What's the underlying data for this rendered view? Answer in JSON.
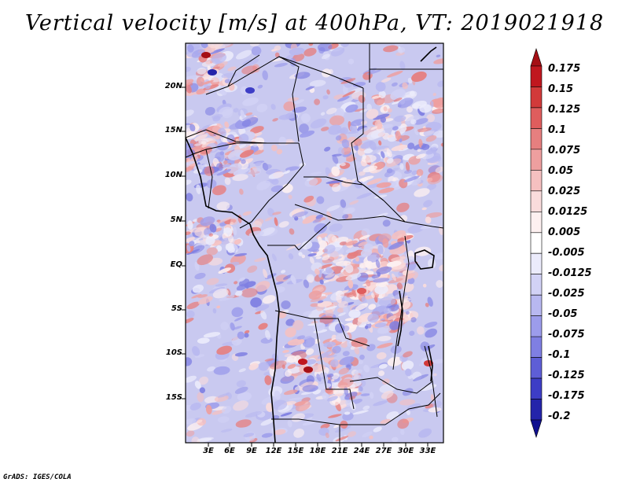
{
  "title": "Vertical velocity [m/s] at 400hPa, VT: 2019021918",
  "lat_labels": [
    "20N",
    "15N",
    "10N",
    "5N",
    "EQ",
    "5S",
    "10S",
    "15S"
  ],
  "lon_labels": [
    "3E",
    "6E",
    "9E",
    "12E",
    "15E",
    "18E",
    "21E",
    "24E",
    "27E",
    "30E",
    "33E"
  ],
  "colorbar": {
    "labels": [
      "0.175",
      "0.15",
      "0.125",
      "0.1",
      "0.075",
      "0.05",
      "0.025",
      "0.0125",
      "0.005",
      "-0.005",
      "-0.0125",
      "-0.025",
      "-0.05",
      "-0.075",
      "-0.1",
      "-0.125",
      "-0.175",
      "-0.2"
    ],
    "colors": [
      "#a50f15",
      "#c0171f",
      "#d23a3a",
      "#df5d5d",
      "#e67f7f",
      "#ee9f9f",
      "#f5c0c0",
      "#fadcdc",
      "#fdf0f0",
      "#ffffff",
      "#ebebfb",
      "#d2d2f5",
      "#b8b8f0",
      "#9c9ceb",
      "#7f7fe2",
      "#5e5ed6",
      "#3d3dc6",
      "#2424aa",
      "#10108f"
    ]
  },
  "credit": "GrADS: IGES/COLA"
}
